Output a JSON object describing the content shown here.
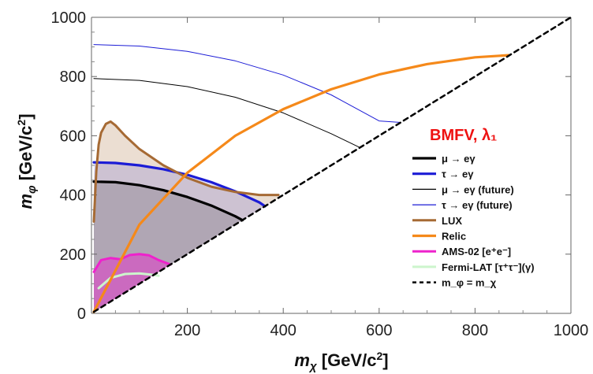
{
  "chart_data": {
    "type": "line",
    "xlabel": "m_χ [GeV/c²]",
    "ylabel": "m_φ [GeV/c²]",
    "xlim": [
      0,
      1000
    ],
    "ylim": [
      0,
      1000
    ],
    "xticks": [
      "200",
      "400",
      "600",
      "800",
      "1000"
    ],
    "yticks": [
      "0",
      "200",
      "400",
      "600",
      "800",
      "1000"
    ],
    "legend_title": "BMFV, λ₁",
    "legend_position": "right",
    "colors": {
      "title": "#ee1111",
      "mu": "#000000",
      "tau": "#1c1cd6",
      "lux": "#a66a34",
      "relic": "#f5891a",
      "ams": "#ee22cc",
      "fermi": "#ccf5cc",
      "diag": "#000000"
    },
    "legend": [
      {
        "key": "mu",
        "label": "μ → eγ"
      },
      {
        "key": "tau",
        "label": "τ → eγ"
      },
      {
        "key": "mu_future",
        "label": "μ → eγ (future)"
      },
      {
        "key": "tau_future",
        "label": "τ → eγ (future)"
      },
      {
        "key": "lux",
        "label": "LUX"
      },
      {
        "key": "relic",
        "label": "Relic"
      },
      {
        "key": "ams",
        "label": "AMS-02 [e⁺e⁻]"
      },
      {
        "key": "fermi",
        "label": "Fermi-LAT [τ⁺τ⁻](γ)"
      },
      {
        "key": "diag",
        "label": "m_φ = m_χ"
      }
    ],
    "series": [
      {
        "key": "mu",
        "x": [
          5,
          50,
          100,
          150,
          200,
          250,
          300,
          315
        ],
        "y": [
          445,
          443,
          433,
          416,
          393,
          364,
          328,
          315
        ]
      },
      {
        "key": "tau",
        "x": [
          5,
          50,
          100,
          150,
          200,
          250,
          300,
          350,
          362
        ],
        "y": [
          510,
          508,
          500,
          487,
          468,
          443,
          412,
          375,
          362
        ]
      },
      {
        "key": "mu_future",
        "x": [
          5,
          100,
          200,
          300,
          400,
          500,
          560
        ],
        "y": [
          793,
          787,
          766,
          730,
          677,
          607,
          560
        ]
      },
      {
        "key": "tau_future",
        "x": [
          5,
          100,
          200,
          300,
          400,
          500,
          600,
          645
        ],
        "y": [
          908,
          903,
          885,
          853,
          805,
          738,
          650,
          645
        ]
      },
      {
        "key": "lux",
        "x": [
          5,
          10,
          15,
          20,
          30,
          40,
          50,
          70,
          100,
          150,
          200,
          250,
          300,
          350,
          390
        ],
        "y": [
          310,
          480,
          570,
          610,
          640,
          648,
          635,
          600,
          555,
          500,
          458,
          428,
          410,
          400,
          400
        ]
      },
      {
        "key": "relic",
        "x": [
          5,
          100,
          200,
          300,
          400,
          500,
          600,
          700,
          800,
          870
        ],
        "y": [
          5,
          300,
          475,
          600,
          690,
          757,
          807,
          842,
          865,
          872
        ]
      },
      {
        "key": "ams",
        "x": [
          5,
          20,
          40,
          60,
          80,
          100,
          120,
          140,
          165
        ],
        "y": [
          140,
          180,
          187,
          183,
          197,
          200,
          196,
          180,
          165
        ]
      },
      {
        "key": "fermi",
        "x": [
          15,
          40,
          70,
          100,
          130,
          140
        ],
        "y": [
          85,
          120,
          133,
          135,
          130,
          127
        ]
      },
      {
        "key": "diag",
        "x": [
          5,
          1000
        ],
        "y": [
          5,
          1000
        ]
      }
    ]
  }
}
